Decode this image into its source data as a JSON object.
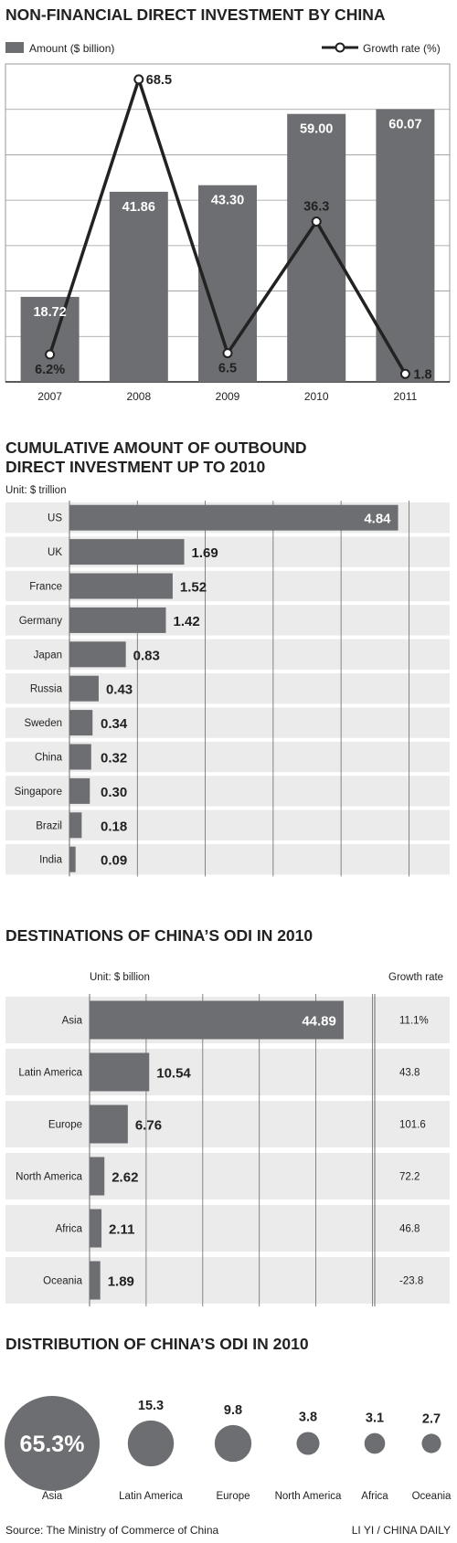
{
  "chart_data": [
    {
      "type": "bar",
      "title": "NON-FINANCIAL DIRECT INVESTMENT BY CHINA",
      "categories": [
        "2007",
        "2008",
        "2009",
        "2010",
        "2011"
      ],
      "series": [
        {
          "name": "Amount ($ billion)",
          "type": "bar",
          "values": [
            18.72,
            41.86,
            43.3,
            59.0,
            60.07
          ],
          "labels": [
            "18.72",
            "41.86",
            "43.30",
            "59.00",
            "60.07"
          ]
        },
        {
          "name": "Growth rate (%)",
          "type": "line",
          "values": [
            6.2,
            68.5,
            6.5,
            36.3,
            1.8
          ],
          "labels": [
            "6.2%",
            "68.5",
            "6.5",
            "36.3",
            "1.8"
          ]
        }
      ],
      "ylim": [
        0,
        70
      ],
      "growth_ylim": [
        0,
        72
      ],
      "grid": true,
      "legend": "top"
    },
    {
      "type": "bar",
      "orientation": "horizontal",
      "title_lines": [
        "CUMULATIVE AMOUNT OF OUTBOUND",
        "DIRECT INVESTMENT UP TO 2010"
      ],
      "unit": "Unit: $ trillion",
      "categories": [
        "US",
        "UK",
        "France",
        "Germany",
        "Japan",
        "Russia",
        "Sweden",
        "China",
        "Singapore",
        "Brazil",
        "India"
      ],
      "values": [
        4.84,
        1.69,
        1.52,
        1.42,
        0.83,
        0.43,
        0.34,
        0.32,
        0.3,
        0.18,
        0.09
      ],
      "labels": [
        "4.84",
        "1.69",
        "1.52",
        "1.42",
        "0.83",
        "0.43",
        "0.34",
        "0.32",
        "0.30",
        "0.18",
        "0.09"
      ],
      "xlim": [
        0,
        5.6
      ],
      "grid": true
    },
    {
      "type": "bar",
      "orientation": "horizontal",
      "title": "DESTINATIONS OF CHINA’S ODI IN 2010",
      "unit": "Unit: $ billion",
      "growth_header": "Growth rate",
      "categories": [
        "Asia",
        "Latin America",
        "Europe",
        "North America",
        "Africa",
        "Oceania"
      ],
      "values": [
        44.89,
        10.54,
        6.76,
        2.62,
        2.11,
        1.89
      ],
      "labels": [
        "44.89",
        "10.54",
        "6.76",
        "2.62",
        "2.11",
        "1.89"
      ],
      "growth_rate": [
        "11.1%",
        "43.8",
        "101.6",
        "72.2",
        "46.8",
        "-23.8"
      ],
      "xlim": [
        0,
        50.4
      ],
      "grid": true
    },
    {
      "type": "bubble",
      "title": "DISTRIBUTION OF CHINA’S ODI IN 2010",
      "categories": [
        "Asia",
        "Latin America",
        "Europe",
        "North America",
        "Africa",
        "Oceania"
      ],
      "values": [
        65.3,
        15.3,
        9.8,
        3.8,
        3.1,
        2.7
      ],
      "labels": [
        "65.3%",
        "15.3",
        "9.8",
        "3.8",
        "3.1",
        "2.7"
      ]
    }
  ],
  "colors": {
    "bar": "#6d6e71",
    "band": "#ebebeb",
    "grid": "#9a9a9a",
    "text": "#222222",
    "white": "#ffffff"
  },
  "footer": {
    "source": "Source: The Ministry of Commerce of China",
    "credit": "LI YI / CHINA DAILY"
  }
}
